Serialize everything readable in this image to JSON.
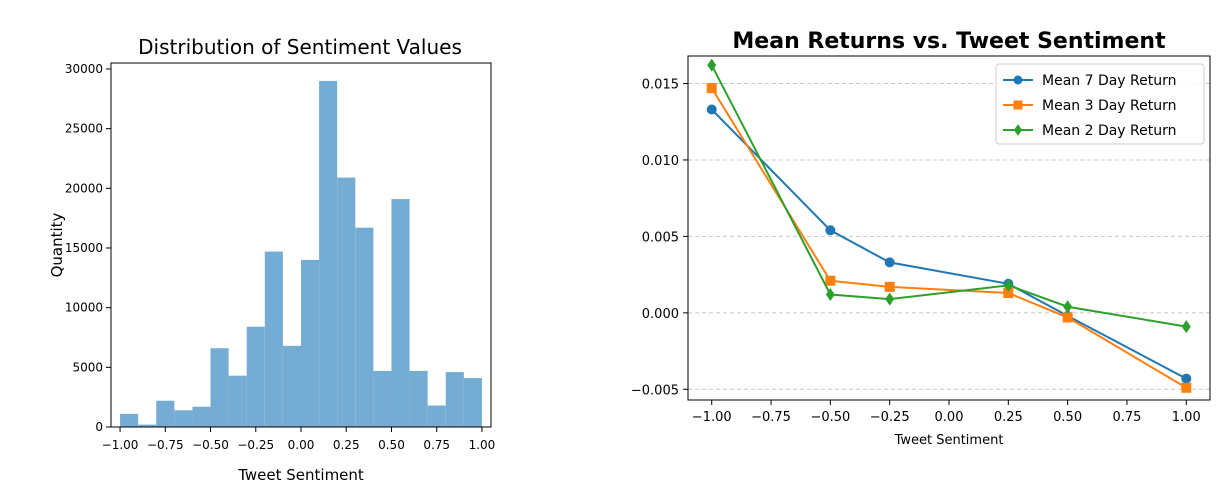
{
  "chart_data": [
    {
      "type": "bar",
      "title": "Distribution of Sentiment Values",
      "xlabel": "Tweet Sentiment",
      "ylabel": "Quantity",
      "xlim": [
        -1.05,
        1.05
      ],
      "ylim": [
        0,
        30500
      ],
      "x_ticks": [
        -1.0,
        -0.75,
        -0.5,
        -0.25,
        0.0,
        0.25,
        0.5,
        0.75,
        1.0
      ],
      "x_tick_labels": [
        "−1.00",
        "−0.75",
        "−0.50",
        "−0.25",
        "0.00",
        "0.25",
        "0.50",
        "0.75",
        "1.00"
      ],
      "y_ticks": [
        0,
        5000,
        10000,
        15000,
        20000,
        25000,
        30000
      ],
      "y_tick_labels": [
        "0",
        "5000",
        "10000",
        "15000",
        "20000",
        "25000",
        "30000"
      ],
      "bin_edges": [
        -1.0,
        -0.9,
        -0.8,
        -0.7,
        -0.6,
        -0.5,
        -0.4,
        -0.3,
        -0.2,
        -0.1,
        0.0,
        0.1,
        0.2,
        0.3,
        0.4,
        0.5,
        0.6,
        0.7,
        0.8,
        0.9,
        1.0
      ],
      "values": [
        1100,
        200,
        2200,
        1400,
        1700,
        6600,
        4300,
        8400,
        14700,
        6800,
        14000,
        29000,
        20900,
        16700,
        4700,
        19100,
        4700,
        1800,
        4600,
        4100
      ],
      "color": "#75acd4",
      "grid": false
    },
    {
      "type": "line",
      "title": "Mean Returns vs. Tweet Sentiment",
      "xlabel": "Tweet Sentiment",
      "ylabel": "",
      "xlim": [
        -1.1,
        1.1
      ],
      "ylim": [
        -0.0057,
        0.0168
      ],
      "x_ticks": [
        -1.0,
        -0.75,
        -0.5,
        -0.25,
        0.0,
        0.25,
        0.5,
        0.75,
        1.0
      ],
      "x_tick_labels": [
        "−1.00",
        "−0.75",
        "−0.50",
        "−0.25",
        "0.00",
        "0.25",
        "0.50",
        "0.75",
        "1.00"
      ],
      "y_ticks": [
        -0.005,
        0.0,
        0.005,
        0.01,
        0.015
      ],
      "y_tick_labels": [
        "−0.005",
        "0.000",
        "0.005",
        "0.010",
        "0.015"
      ],
      "grid": "horizontal dashed",
      "legend_position": "top-right",
      "x": [
        -1.0,
        -0.5,
        -0.25,
        0.25,
        0.5,
        1.0
      ],
      "series": [
        {
          "name": "Mean 7 Day Return",
          "marker": "circle",
          "color": "#1f77b4",
          "values": [
            0.0133,
            0.0054,
            0.0033,
            0.0019,
            -0.0002,
            -0.0043
          ]
        },
        {
          "name": "Mean 3 Day Return",
          "marker": "square",
          "color": "#ff7f0e",
          "values": [
            0.0147,
            0.0021,
            0.0017,
            0.0013,
            -0.0003,
            -0.0049
          ]
        },
        {
          "name": "Mean 2 Day Return",
          "marker": "diamond",
          "color": "#2ca02c",
          "values": [
            0.0162,
            0.0012,
            0.0009,
            0.0018,
            0.0004,
            -0.0009
          ]
        }
      ]
    }
  ]
}
